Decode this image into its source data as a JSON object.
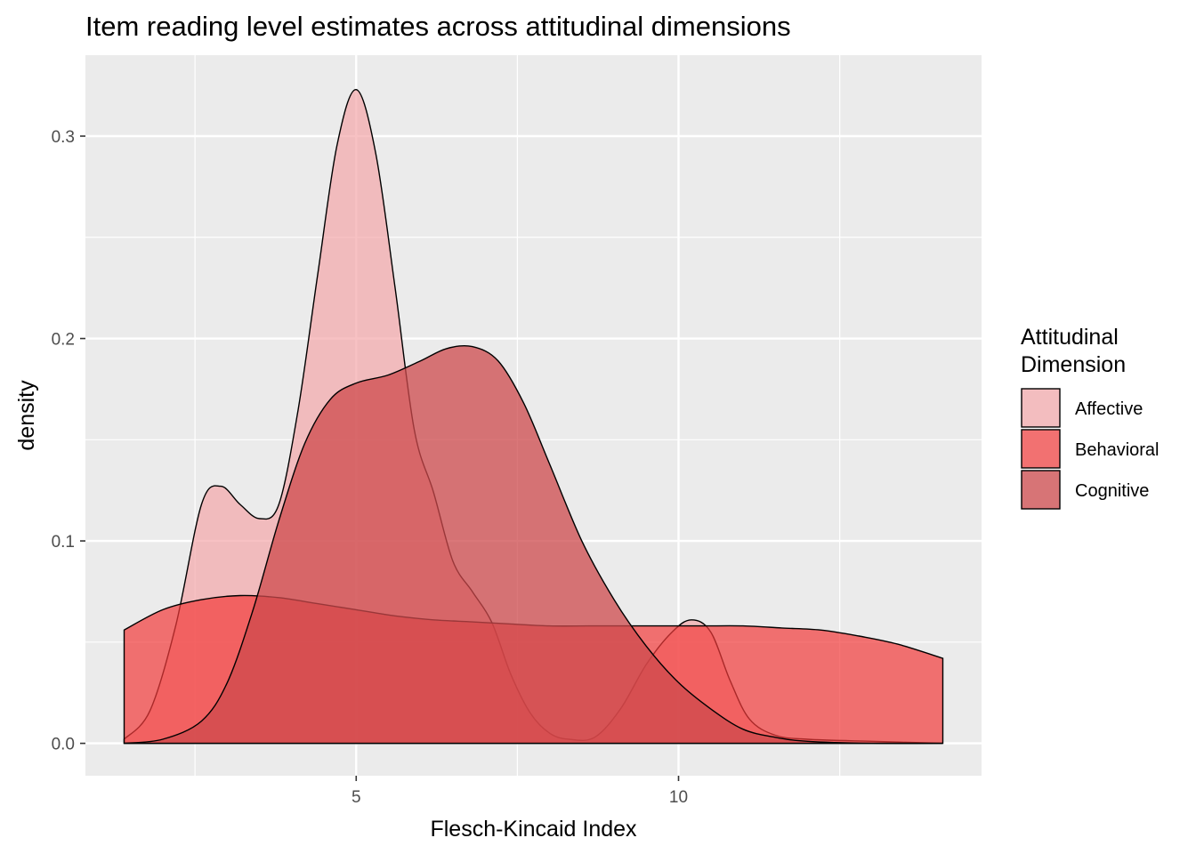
{
  "chart_data": {
    "type": "area",
    "subtype": "density",
    "title": "Item reading level estimates across attitudinal dimensions",
    "xlabel": "Flesch-Kincaid Index",
    "ylabel": "density",
    "xlim": [
      0.8,
      14.7
    ],
    "ylim": [
      -0.016,
      0.34
    ],
    "x_ticks": [
      5,
      10
    ],
    "x_tick_labels": [
      "5",
      "10"
    ],
    "y_ticks": [
      0.0,
      0.1,
      0.2,
      0.3
    ],
    "y_tick_labels": [
      "0.0",
      "0.1",
      "0.2",
      "0.3"
    ],
    "grid": true,
    "panel_background": "#ebebeb",
    "legend": {
      "title": "Attitudinal\nDimension",
      "title_lines": [
        "Attitudinal",
        "Dimension"
      ],
      "position": "right"
    },
    "series": [
      {
        "name": "Affective",
        "color": "#f4a6a9",
        "opacity": 0.7,
        "x": [
          1.4,
          1.8,
          2.2,
          2.6,
          2.9,
          3.2,
          3.5,
          3.8,
          4.1,
          4.4,
          4.7,
          5.0,
          5.3,
          5.6,
          5.9,
          6.2,
          6.5,
          6.8,
          7.1,
          7.4,
          7.7,
          8.0,
          8.3,
          8.7,
          9.1,
          9.5,
          9.9,
          10.2,
          10.5,
          10.8,
          11.1,
          11.5,
          12.0,
          13.0,
          14.1
        ],
        "y": [
          0.002,
          0.016,
          0.058,
          0.118,
          0.127,
          0.118,
          0.111,
          0.118,
          0.165,
          0.231,
          0.295,
          0.323,
          0.292,
          0.226,
          0.155,
          0.124,
          0.09,
          0.075,
          0.06,
          0.034,
          0.015,
          0.005,
          0.002,
          0.003,
          0.017,
          0.039,
          0.055,
          0.061,
          0.055,
          0.031,
          0.012,
          0.004,
          0.002,
          0.001,
          0.0
        ]
      },
      {
        "name": "Behavioral",
        "color": "#f23b3b",
        "opacity": 0.7,
        "x": [
          1.4,
          2.0,
          2.6,
          3.2,
          3.8,
          4.4,
          5.0,
          5.6,
          6.2,
          6.8,
          7.4,
          8.0,
          8.6,
          9.2,
          9.8,
          10.4,
          11.0,
          11.6,
          12.2,
          12.8,
          13.4,
          14.1
        ],
        "y": [
          0.056,
          0.066,
          0.071,
          0.073,
          0.072,
          0.069,
          0.066,
          0.063,
          0.061,
          0.06,
          0.059,
          0.058,
          0.058,
          0.058,
          0.058,
          0.058,
          0.058,
          0.057,
          0.056,
          0.053,
          0.049,
          0.042
        ]
      },
      {
        "name": "Cognitive",
        "color": "#ce4a4c",
        "opacity": 0.75,
        "x": [
          1.4,
          2.0,
          2.6,
          3.0,
          3.4,
          3.8,
          4.2,
          4.6,
          5.0,
          5.5,
          6.0,
          6.4,
          6.8,
          7.2,
          7.6,
          8.0,
          8.5,
          9.0,
          9.5,
          10.0,
          10.5,
          11.0,
          11.5,
          12.0,
          13.0,
          14.1
        ],
        "y": [
          0.0,
          0.002,
          0.011,
          0.03,
          0.066,
          0.11,
          0.148,
          0.17,
          0.178,
          0.182,
          0.189,
          0.195,
          0.196,
          0.189,
          0.168,
          0.138,
          0.1,
          0.071,
          0.048,
          0.03,
          0.017,
          0.007,
          0.003,
          0.001,
          0.0,
          0.0
        ]
      }
    ]
  }
}
